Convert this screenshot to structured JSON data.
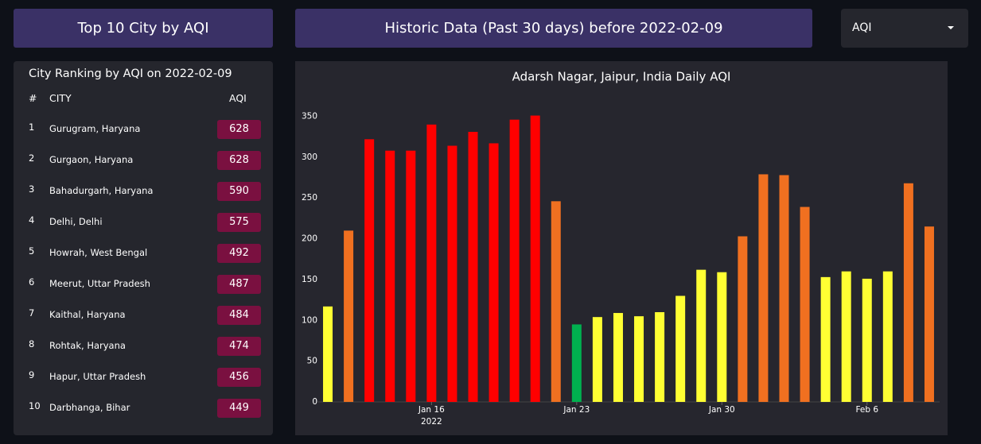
{
  "header": {
    "left_title": "Top 10 City by AQI",
    "center_title": "Historic Data (Past 30 days) before 2022-02-09",
    "dropdown": "AQI"
  },
  "ranking": {
    "title": "City Ranking by AQI on 2022-02-09",
    "columns": [
      "#",
      "CITY",
      "AQI"
    ],
    "rows": [
      [
        "1",
        "Gurugram, Haryana",
        "628"
      ],
      [
        "2",
        "Gurgaon, Haryana",
        "628"
      ],
      [
        "3",
        "Bahadurgarh, Haryana",
        "590"
      ],
      [
        "4",
        "Delhi, Delhi",
        "575"
      ],
      [
        "5",
        "Howrah, West Bengal",
        "492"
      ],
      [
        "6",
        "Meerut, Uttar Pradesh",
        "487"
      ],
      [
        "7",
        "Kaithal, Haryana",
        "484"
      ],
      [
        "8",
        "Rohtak, Haryana",
        "474"
      ],
      [
        "9",
        "Hapur, Uttar Pradesh",
        "456"
      ],
      [
        "10",
        "Darbhanga, Bihar",
        "449"
      ]
    ]
  },
  "chart_data": {
    "type": "bar",
    "title": "Adarsh Nagar, Jaipur, India Daily AQI",
    "x": [
      "2022-01-11",
      "2022-01-12",
      "2022-01-13",
      "2022-01-14",
      "2022-01-15",
      "2022-01-16",
      "2022-01-17",
      "2022-01-18",
      "2022-01-19",
      "2022-01-20",
      "2022-01-21",
      "2022-01-22",
      "2022-01-23",
      "2022-01-24",
      "2022-01-25",
      "2022-01-26",
      "2022-01-27",
      "2022-01-28",
      "2022-01-29",
      "2022-01-30",
      "2022-01-31",
      "2022-02-01",
      "2022-02-02",
      "2022-02-03",
      "2022-02-04",
      "2022-02-05",
      "2022-02-06",
      "2022-02-07",
      "2022-02-08",
      "2022-02-09"
    ],
    "values": [
      117,
      210,
      322,
      308,
      308,
      340,
      314,
      331,
      317,
      346,
      351,
      246,
      95,
      104,
      109,
      105,
      110,
      130,
      162,
      159,
      203,
      279,
      278,
      239,
      153,
      160,
      151,
      160,
      268,
      215
    ],
    "colors": [
      "#ffff33",
      "#f07020",
      "#ff0000",
      "#ff0000",
      "#ff0000",
      "#ff0000",
      "#ff0000",
      "#ff0000",
      "#ff0000",
      "#ff0000",
      "#ff0000",
      "#f07020",
      "#00b04f",
      "#ffff33",
      "#ffff33",
      "#ffff33",
      "#ffff33",
      "#ffff33",
      "#ffff33",
      "#ffff33",
      "#f07020",
      "#f07020",
      "#f07020",
      "#f07020",
      "#ffff33",
      "#ffff33",
      "#ffff33",
      "#ffff33",
      "#f07020",
      "#f07020"
    ],
    "ylim": [
      0,
      370
    ],
    "yticks": [
      0,
      50,
      100,
      150,
      200,
      250,
      300,
      350
    ],
    "xticks": [
      {
        "value": "2022-01-16",
        "label": "Jan 16"
      },
      {
        "value": "2022-01-23",
        "label": "Jan 23"
      },
      {
        "value": "2022-01-30",
        "label": "Jan 30"
      },
      {
        "value": "2022-02-06",
        "label": "Feb 6"
      }
    ],
    "x_year": "2022",
    "grid": false
  }
}
